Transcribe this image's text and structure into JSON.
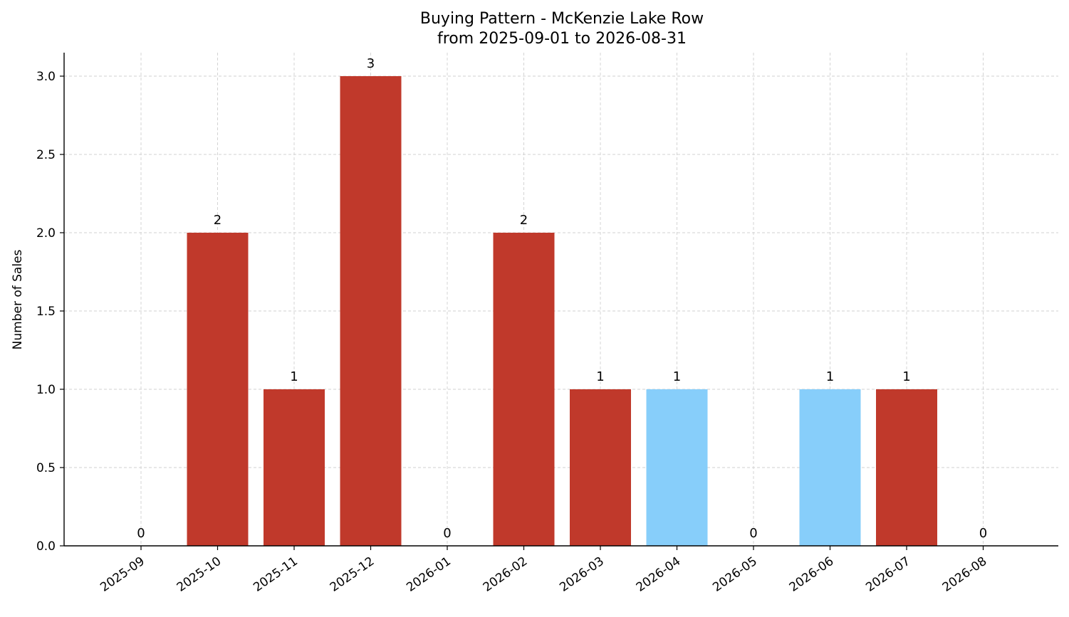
{
  "chart_data": {
    "type": "bar",
    "title": "Buying Pattern - McKenzie Lake Row",
    "subtitle": "from 2025-09-01 to 2026-08-31",
    "xlabel": "",
    "ylabel": "Number of Sales",
    "categories": [
      "2025-09",
      "2025-10",
      "2025-11",
      "2025-12",
      "2026-01",
      "2026-02",
      "2026-03",
      "2026-04",
      "2026-05",
      "2026-06",
      "2026-07",
      "2026-08"
    ],
    "values": [
      0,
      2,
      1,
      3,
      0,
      2,
      1,
      1,
      0,
      1,
      1,
      0
    ],
    "bar_colors": [
      "#c0392b",
      "#c0392b",
      "#c0392b",
      "#c0392b",
      "#c0392b",
      "#c0392b",
      "#c0392b",
      "#87cefa",
      "#c0392b",
      "#87cefa",
      "#c0392b",
      "#c0392b"
    ],
    "ylim": [
      0,
      3.15
    ],
    "yticks": [
      "0.0",
      "0.5",
      "1.0",
      "1.5",
      "2.0",
      "2.5",
      "3.0"
    ],
    "grid": true,
    "legend": false
  }
}
